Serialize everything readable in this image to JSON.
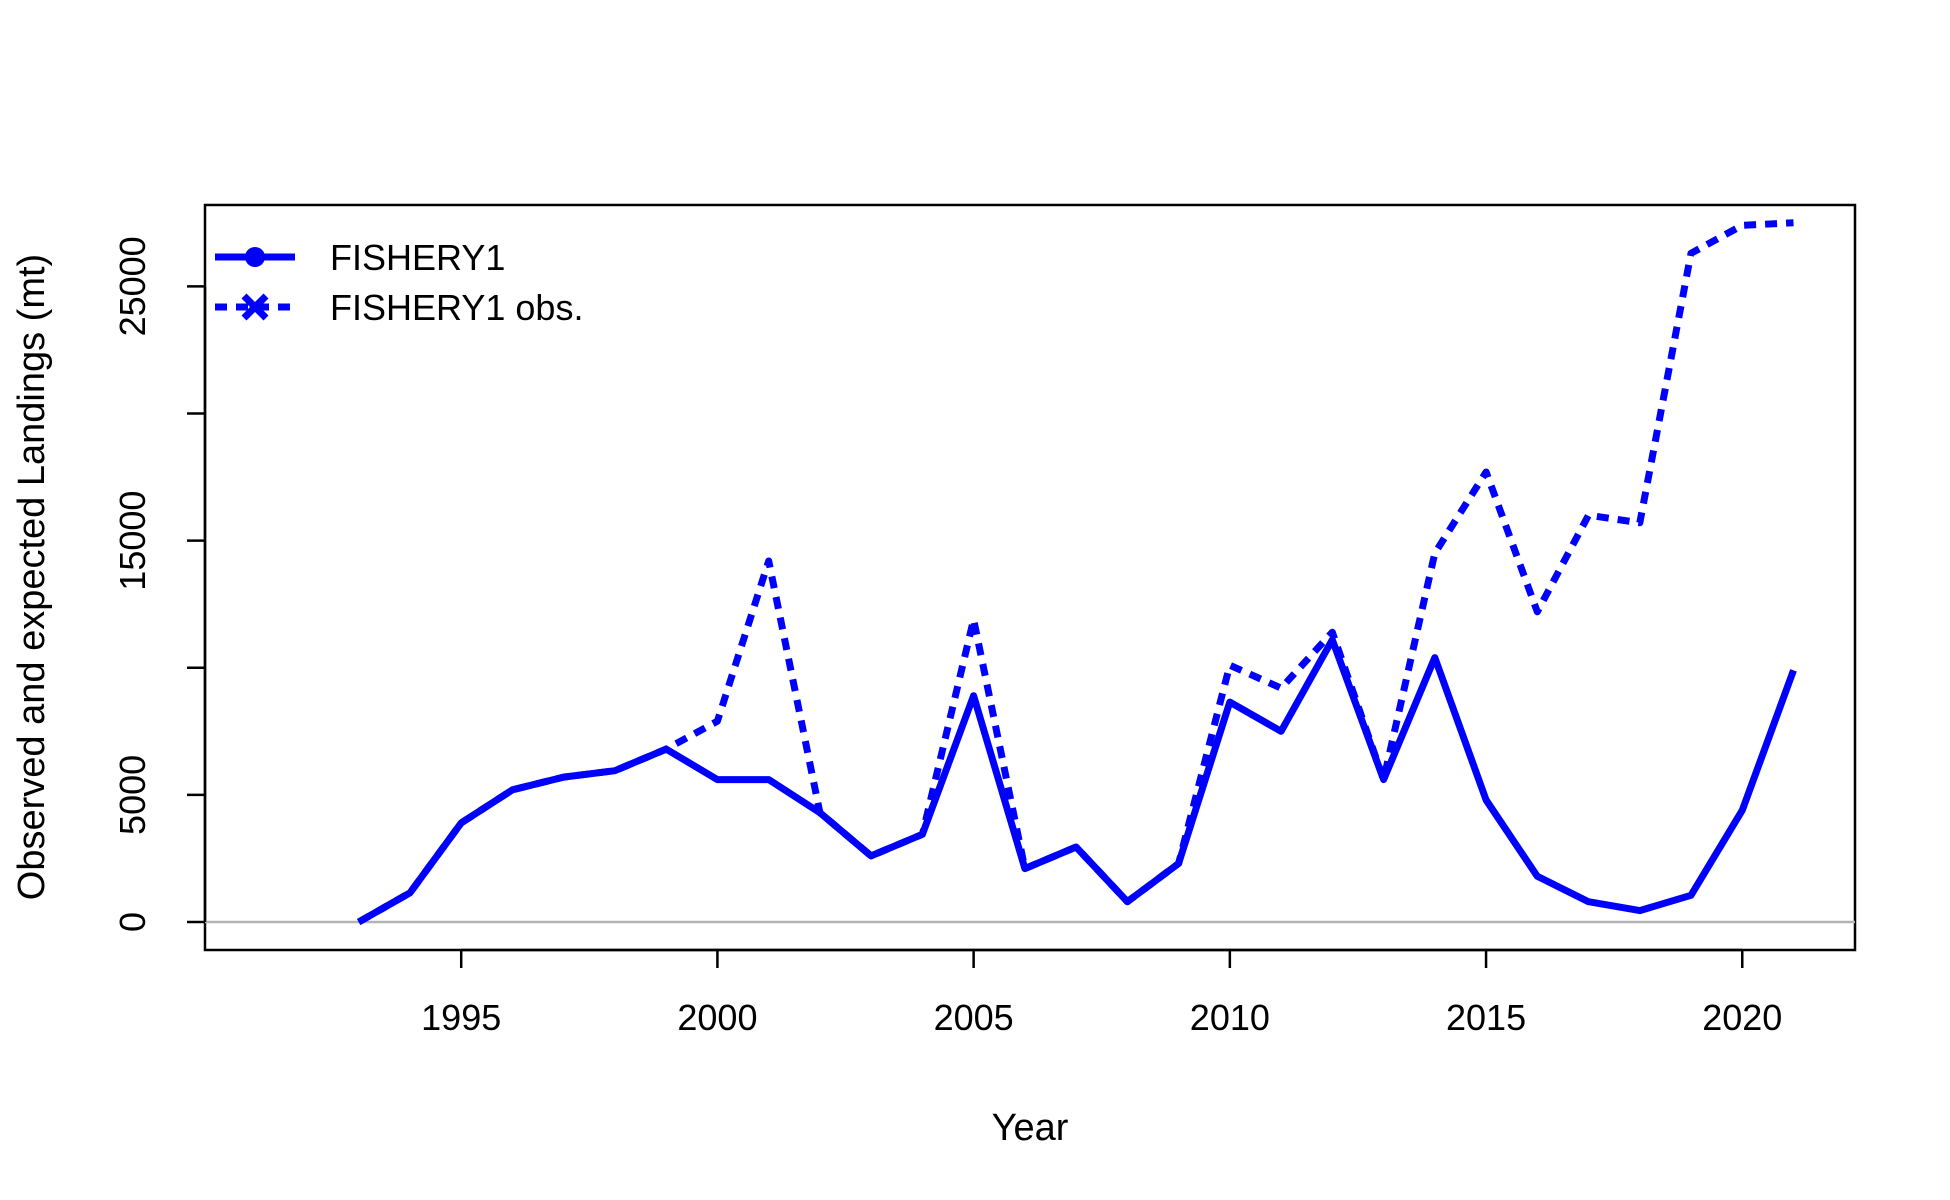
{
  "chart_data": {
    "type": "line",
    "title": "",
    "xlabel": "Year",
    "ylabel": "Observed and expected Landings (mt)",
    "xlim": [
      1990,
      2022.2
    ],
    "ylim": [
      -1100,
      28200
    ],
    "x_ticks": [
      1995,
      2000,
      2005,
      2010,
      2015,
      2020
    ],
    "y_ticks": [
      0,
      5000,
      15000,
      25000
    ],
    "y_minor_ticks": [
      10000,
      20000
    ],
    "zero_line": true,
    "grid": false,
    "legend_position": "top-left",
    "series": [
      {
        "name": "FISHERY1",
        "style": "solid",
        "marker": "circle",
        "color": "#0000ff",
        "x": [
          1993,
          1994,
          1995,
          1996,
          1997,
          1998,
          1999,
          2000,
          2001,
          2002,
          2003,
          2004,
          2005,
          2006,
          2007,
          2008,
          2009,
          2010,
          2011,
          2012,
          2013,
          2014,
          2015,
          2016,
          2017,
          2018,
          2019,
          2020,
          2021
        ],
        "values": [
          0,
          1150,
          3900,
          5200,
          5700,
          5950,
          6800,
          5600,
          5600,
          4300,
          2600,
          3450,
          8900,
          2100,
          2950,
          800,
          2300,
          8650,
          7500,
          11100,
          5600,
          10400,
          4800,
          1800,
          800,
          450,
          1050,
          4400,
          9900
        ]
      },
      {
        "name": "FISHERY1 obs.",
        "style": "dashed",
        "marker": "x",
        "color": "#0000ff",
        "x": [
          1993,
          1994,
          1995,
          1996,
          1997,
          1998,
          1999,
          2000,
          2001,
          2002,
          2003,
          2004,
          2005,
          2006,
          2007,
          2008,
          2009,
          2010,
          2011,
          2012,
          2013,
          2014,
          2015,
          2016,
          2017,
          2018,
          2019,
          2020,
          2021
        ],
        "values": [
          0,
          1150,
          3900,
          5200,
          5700,
          5950,
          6800,
          7900,
          14200,
          4300,
          2600,
          3450,
          11900,
          2100,
          2950,
          800,
          2300,
          10100,
          9200,
          11400,
          5600,
          14500,
          17700,
          12200,
          16000,
          15700,
          26300,
          27400,
          27500
        ]
      }
    ]
  }
}
